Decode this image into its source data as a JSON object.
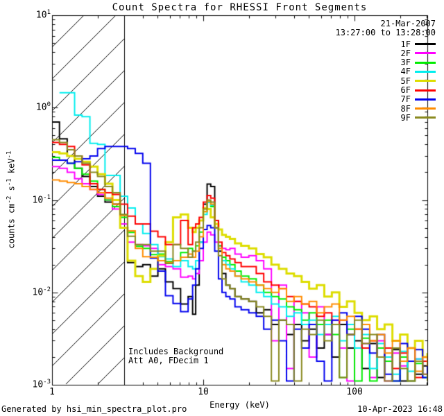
{
  "footer": {
    "left": "Generated by hsi_min_spectra_plot.pro",
    "right": "10-Apr-2023 16:48"
  },
  "chart_data": {
    "type": "line",
    "title": "Count Spectra for RHESSI Front Segments",
    "xlabel": "Energy (keV)",
    "ylabel": "counts cm^-2 s^-1 keV^-1",
    "ylabel_rich": [
      {
        "t": "counts cm"
      },
      {
        "t": "-2",
        "sup": true
      },
      {
        "t": " s"
      },
      {
        "t": "-1",
        "sup": true
      },
      {
        "t": " keV"
      },
      {
        "t": "-1",
        "sup": true
      }
    ],
    "axes": {
      "x": {
        "scale": "log",
        "min": 1,
        "max": 303,
        "major_ticks": [
          1,
          10,
          100
        ],
        "tick_labels": [
          "1",
          "10",
          "100"
        ]
      },
      "y": {
        "scale": "log",
        "min": 0.001,
        "max": 10,
        "major_ticks": [
          0.001,
          0.01,
          0.1,
          1,
          10
        ],
        "tick_labels": [
          {
            "base": "10",
            "exp": "-3"
          },
          {
            "base": "10",
            "exp": "-2"
          },
          {
            "base": "10",
            "exp": "-1"
          },
          {
            "base": "10",
            "exp": "0"
          },
          {
            "base": "10",
            "exp": "1"
          }
        ]
      },
      "grid": false
    },
    "hatch_region": {
      "xmin": 1,
      "xmax": 3.0,
      "style": "diagonal-lines"
    },
    "legend": {
      "position": "top-right",
      "date": "21-Mar-2007",
      "time": "13:27:00 to 13:28:00"
    },
    "annotations": [
      "Includes Background",
      "Att A0, FDecim 1"
    ],
    "energies": [
      1.0,
      1.12,
      1.26,
      1.41,
      1.58,
      1.78,
      2.0,
      2.24,
      2.51,
      2.82,
      3.16,
      3.55,
      3.98,
      4.47,
      5.01,
      5.62,
      6.31,
      7.08,
      7.94,
      8.5,
      8.91,
      9.4,
      10.0,
      10.6,
      11.2,
      11.9,
      12.6,
      13.3,
      14.1,
      15.0,
      16.2,
      17.8,
      20.0,
      22.4,
      25.1,
      28.2,
      31.6,
      35.5,
      39.8,
      44.7,
      50.1,
      56.2,
      63.1,
      70.8,
      79.4,
      89.1,
      100,
      112,
      126,
      141,
      158,
      178,
      200,
      224,
      251,
      282,
      303
    ],
    "series": [
      {
        "name": "1F",
        "color": "#000000",
        "width": 2,
        "values": [
          0.7,
          0.46,
          0.3,
          0.22,
          0.18,
          0.14,
          0.11,
          0.095,
          0.09,
          0.05,
          0.021,
          0.019,
          0.02,
          0.015,
          0.018,
          0.013,
          0.011,
          0.0075,
          0.009,
          0.0058,
          0.012,
          0.035,
          0.09,
          0.149,
          0.14,
          0.06,
          0.028,
          0.016,
          0.012,
          0.011,
          0.009,
          0.0085,
          0.008,
          0.006,
          0.0065,
          0.0045,
          0.005,
          0.0035,
          0.0045,
          0.003,
          0.004,
          0.0025,
          0.0035,
          0.002,
          0.0045,
          0.0025,
          0.003,
          0.0015,
          0.0028,
          0.0012,
          0.002,
          0.0024,
          0.0011,
          0.0018,
          0.0013,
          0.0016,
          0.0012
        ]
      },
      {
        "name": "2F",
        "color": "#FF00FF",
        "width": 2,
        "values": [
          0.23,
          0.22,
          0.2,
          0.17,
          0.15,
          0.13,
          0.115,
          0.1,
          0.08,
          0.055,
          0.035,
          0.033,
          0.032,
          0.03,
          0.02,
          0.019,
          0.018,
          0.0146,
          0.015,
          0.014,
          0.016,
          0.022,
          0.035,
          0.045,
          0.042,
          0.035,
          0.032,
          0.03,
          0.029,
          0.03,
          0.026,
          0.024,
          0.025,
          0.022,
          0.018,
          0.003,
          0.012,
          0.0015,
          0.008,
          0.006,
          0.002,
          0.007,
          0.0035,
          0.005,
          0.0025,
          0.0011,
          0.004,
          0.0028,
          0.0012,
          0.003,
          0.0011,
          0.0022,
          0.0016,
          0.0011,
          0.0019,
          0.0013,
          0.0012
        ]
      },
      {
        "name": "3F",
        "color": "#00EE00",
        "width": 2,
        "values": [
          0.29,
          0.27,
          0.25,
          0.22,
          0.19,
          0.16,
          0.13,
          0.1,
          0.085,
          0.065,
          0.0445,
          0.0315,
          0.03,
          0.0256,
          0.026,
          0.0216,
          0.022,
          0.027,
          0.03,
          0.028,
          0.032,
          0.045,
          0.075,
          0.095,
          0.085,
          0.05,
          0.032,
          0.024,
          0.022,
          0.02,
          0.017,
          0.015,
          0.014,
          0.012,
          0.01,
          0.009,
          0.0085,
          0.007,
          0.0065,
          0.005,
          0.006,
          0.0045,
          0.005,
          0.0035,
          0.0012,
          0.004,
          0.0011,
          0.0032,
          0.0011,
          0.0025,
          0.0018,
          0.0011,
          0.002,
          0.0011,
          0.0017,
          0.0012,
          0.0015
        ]
      },
      {
        "name": "4F",
        "color": "#00EEEE",
        "width": 2,
        "values": [
          null,
          1.45,
          1.45,
          0.83,
          0.8,
          0.41,
          0.4,
          0.185,
          0.185,
          0.11,
          0.082,
          0.055,
          0.0434,
          0.033,
          0.0243,
          0.023,
          0.019,
          0.022,
          0.019,
          0.018,
          0.022,
          0.035,
          0.07,
          0.094,
          0.088,
          0.05,
          0.03,
          0.022,
          0.02,
          0.018,
          0.015,
          0.013,
          0.012,
          0.01,
          0.009,
          0.0075,
          0.007,
          0.0055,
          0.006,
          0.0045,
          0.005,
          0.0035,
          0.0045,
          0.0055,
          0.003,
          0.0045,
          0.0025,
          0.0035,
          0.0015,
          0.0028,
          0.002,
          0.0013,
          0.0023,
          0.0014,
          0.0019,
          0.0012,
          0.0018
        ]
      },
      {
        "name": "5F",
        "color": "#DDDD00",
        "width": 3,
        "values": [
          0.33,
          0.32,
          0.3,
          0.28,
          0.26,
          0.23,
          0.19,
          0.15,
          0.1,
          0.05,
          0.022,
          0.015,
          0.013,
          0.018,
          0.025,
          0.035,
          0.065,
          0.07,
          0.05,
          0.045,
          0.05,
          0.06,
          0.082,
          0.08,
          0.065,
          0.055,
          0.048,
          0.042,
          0.04,
          0.038,
          0.034,
          0.032,
          0.03,
          0.026,
          0.024,
          0.02,
          0.018,
          0.016,
          0.015,
          0.013,
          0.011,
          0.012,
          0.009,
          0.01,
          0.007,
          0.008,
          0.006,
          0.005,
          0.0055,
          0.004,
          0.0045,
          0.003,
          0.0035,
          0.0025,
          0.003,
          0.002,
          0.0022
        ]
      },
      {
        "name": "6F",
        "color": "#FF0000",
        "width": 2,
        "values": [
          0.42,
          0.4,
          0.38,
          0.3,
          0.24,
          0.15,
          0.13,
          0.12,
          0.115,
          0.09,
          0.067,
          0.055,
          0.055,
          0.046,
          0.04,
          0.033,
          0.033,
          0.06,
          0.033,
          0.05,
          0.055,
          0.065,
          0.095,
          0.112,
          0.105,
          0.06,
          0.035,
          0.027,
          0.025,
          0.023,
          0.021,
          0.019,
          0.019,
          0.016,
          0.013,
          0.012,
          0.011,
          0.009,
          0.008,
          0.0075,
          0.007,
          0.0055,
          0.006,
          0.0045,
          0.005,
          0.0035,
          0.004,
          0.0025,
          0.003,
          0.002,
          0.0025,
          0.0015,
          0.0022,
          0.0025,
          0.0012,
          0.0018,
          0.0014
        ]
      },
      {
        "name": "7F",
        "color": "#0000EE",
        "width": 2,
        "values": [
          0.27,
          0.27,
          0.25,
          0.26,
          0.28,
          0.3,
          0.36,
          0.38,
          0.38,
          0.38,
          0.36,
          0.32,
          0.25,
          0.0235,
          0.017,
          0.0092,
          0.0076,
          0.0062,
          0.0085,
          0.012,
          0.018,
          0.03,
          0.048,
          0.053,
          0.05,
          0.028,
          0.014,
          0.01,
          0.009,
          0.0085,
          0.007,
          0.0065,
          0.006,
          0.0055,
          0.004,
          0.005,
          0.003,
          0.0011,
          0.004,
          0.0025,
          0.0045,
          0.0018,
          0.0011,
          0.005,
          0.006,
          0.0035,
          0.0055,
          0.004,
          0.0022,
          0.0035,
          0.0013,
          0.0011,
          0.0028,
          0.0018,
          0.0024,
          0.0012,
          0.0016
        ]
      },
      {
        "name": "8F",
        "color": "#FF8C00",
        "width": 2,
        "values": [
          0.165,
          0.16,
          0.155,
          0.15,
          0.14,
          0.13,
          0.12,
          0.105,
          0.09,
          0.068,
          0.0464,
          0.03,
          0.0243,
          0.024,
          0.022,
          0.021,
          0.022,
          0.024,
          0.026,
          0.024,
          0.028,
          0.04,
          0.075,
          0.097,
          0.09,
          0.05,
          0.03,
          0.02,
          0.018,
          0.017,
          0.015,
          0.014,
          0.013,
          0.012,
          0.011,
          0.01,
          0.011,
          0.008,
          0.009,
          0.0075,
          0.008,
          0.006,
          0.007,
          0.0075,
          0.005,
          0.0055,
          0.004,
          0.0045,
          0.003,
          0.0035,
          0.0022,
          0.003,
          0.0018,
          0.0025,
          0.0014,
          0.002,
          0.0016
        ]
      },
      {
        "name": "9F",
        "color": "#8A8A20",
        "width": 2,
        "values": [
          0.45,
          0.42,
          0.35,
          0.3,
          0.25,
          0.2,
          0.18,
          0.14,
          0.12,
          0.07,
          0.0406,
          0.033,
          0.033,
          0.028,
          0.028,
          0.0206,
          0.033,
          0.03,
          0.024,
          0.028,
          0.035,
          0.05,
          0.08,
          0.1,
          0.095,
          0.05,
          0.025,
          0.014,
          0.012,
          0.011,
          0.009,
          0.0085,
          0.008,
          0.007,
          0.0055,
          0.0011,
          0.005,
          0.0045,
          0.0011,
          0.004,
          0.0035,
          0.005,
          0.003,
          0.0045,
          0.0012,
          0.0035,
          0.005,
          0.0028,
          0.0035,
          0.002,
          0.0011,
          0.0025,
          0.0015,
          0.0011,
          0.0018,
          0.0013,
          0.0011
        ]
      }
    ]
  }
}
